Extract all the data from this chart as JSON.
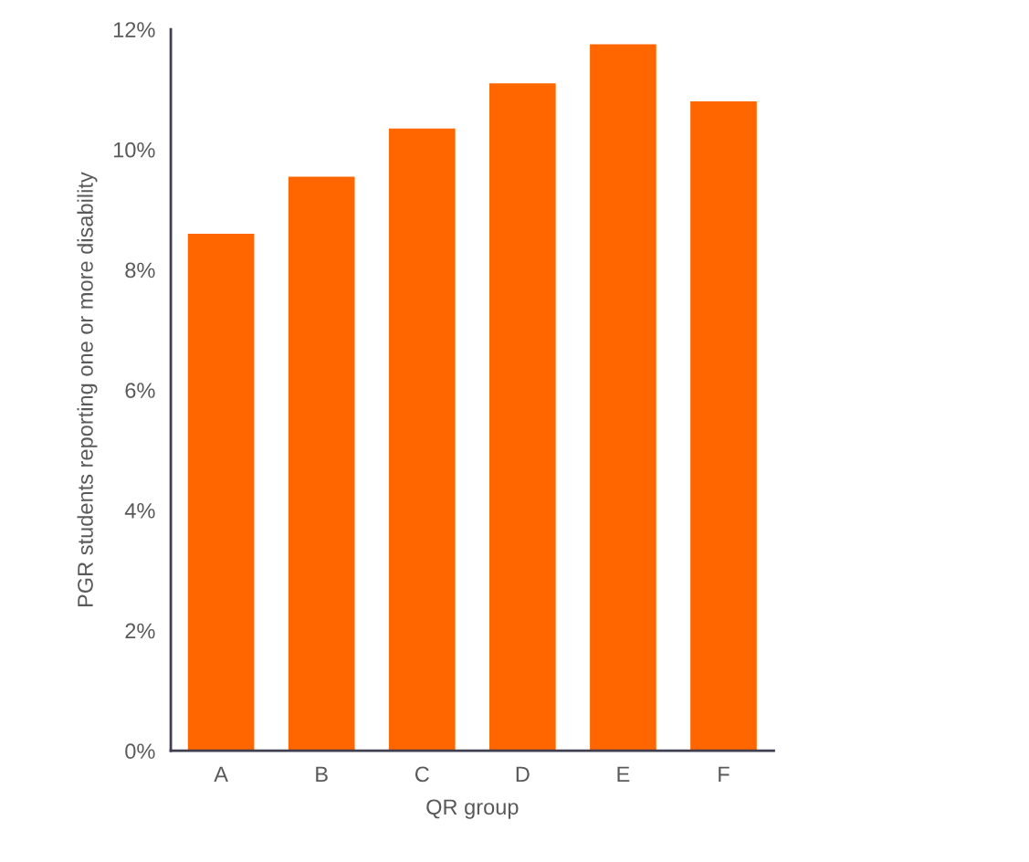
{
  "chart_data": {
    "type": "bar",
    "xlabel": "QR group",
    "ylabel": "PGR students reporting one or more disability",
    "categories": [
      "A",
      "B",
      "C",
      "D",
      "E",
      "F"
    ],
    "series": [
      {
        "color": "#ff6600",
        "values": [
          8.6,
          9.55,
          10.35,
          11.1,
          11.75,
          10.8
        ]
      }
    ],
    "ylim": [
      0,
      12
    ],
    "yticks": [
      {
        "value": 0,
        "label": "0%"
      },
      {
        "value": 2,
        "label": "2%"
      },
      {
        "value": 4,
        "label": "4%"
      },
      {
        "value": 6,
        "label": "6%"
      },
      {
        "value": 8,
        "label": "8%"
      },
      {
        "value": 10,
        "label": "10%"
      },
      {
        "value": 12,
        "label": "12%"
      }
    ],
    "grid": false,
    "legend": false
  }
}
